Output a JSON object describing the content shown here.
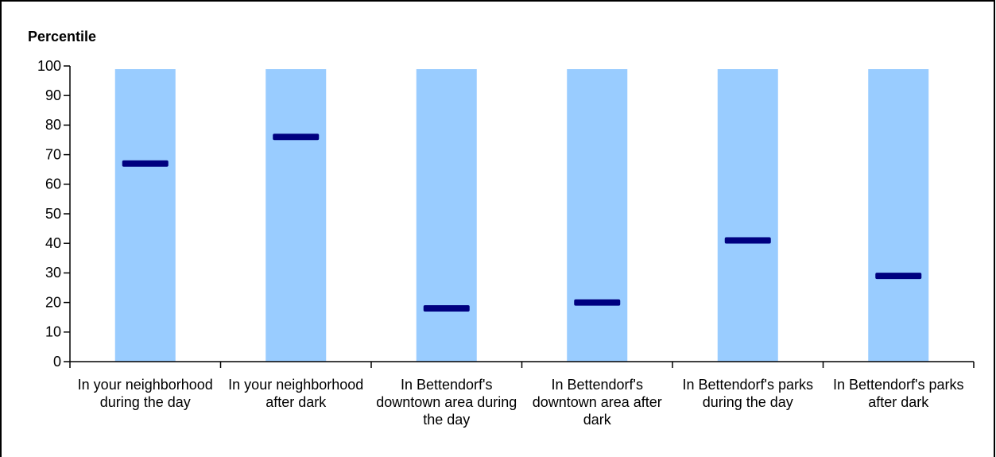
{
  "chart_data": {
    "type": "marker",
    "y_axis_label": "Percentile",
    "categories": [
      "In your neighborhood during the day",
      "In your neighborhood after dark",
      "In Bettendorf's downtown area during the day",
      "In Bettendorf's downtown area after dark",
      "In Bettendorf's parks during the day",
      "In Bettendorf's parks after dark"
    ],
    "values": [
      67,
      76,
      18,
      20,
      41,
      29
    ],
    "color": "#000080",
    "band_color": "#99ccff",
    "ylim": [
      0,
      100
    ],
    "yticks": [
      0,
      10,
      20,
      30,
      40,
      50,
      60,
      70,
      80,
      90,
      100
    ]
  }
}
